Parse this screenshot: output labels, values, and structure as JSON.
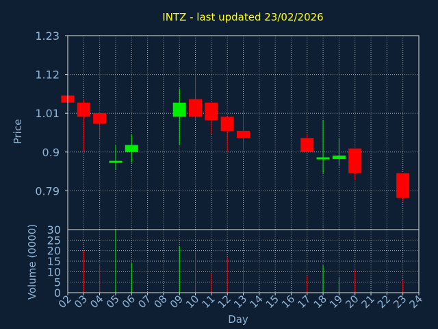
{
  "chart_data": {
    "type": "candlestick",
    "title": "INTZ - last updated 23/02/2026",
    "xlabel": "Day",
    "ylabel": "Price",
    "volume_label": "Volume (0000)",
    "grid": true,
    "price_ylim": [
      0.68,
      1.23
    ],
    "price_ticks": [
      "1.23",
      "1.12",
      "1.01",
      "0.9",
      "0.79"
    ],
    "volume_ylim": [
      0,
      30
    ],
    "volume_ticks": [
      "30",
      "25",
      "20",
      "15",
      "10",
      "5",
      "0"
    ],
    "days": [
      "02",
      "03",
      "04",
      "05",
      "06",
      "07",
      "08",
      "09",
      "10",
      "11",
      "12",
      "13",
      "14",
      "15",
      "16",
      "17",
      "18",
      "19",
      "20",
      "21",
      "22",
      "23",
      "24"
    ],
    "candles": [
      {
        "day": "02",
        "open": 1.06,
        "high": 1.06,
        "low": 1.04,
        "close": 1.04,
        "volume": 0
      },
      {
        "day": "03",
        "open": 1.04,
        "high": 1.05,
        "low": 0.9,
        "close": 1.0,
        "volume": 20
      },
      {
        "day": "04",
        "open": 1.01,
        "high": 1.01,
        "low": 0.94,
        "close": 0.98,
        "volume": 13
      },
      {
        "day": "05",
        "open": 0.87,
        "high": 0.92,
        "low": 0.85,
        "close": 0.875,
        "volume": 30
      },
      {
        "day": "06",
        "open": 0.9,
        "high": 0.95,
        "low": 0.87,
        "close": 0.92,
        "volume": 14
      },
      {
        "day": "09",
        "open": 1.0,
        "high": 1.08,
        "low": 0.92,
        "close": 1.04,
        "volume": 22
      },
      {
        "day": "10",
        "open": 1.05,
        "high": 1.12,
        "low": 0.99,
        "close": 1.0,
        "volume": 20
      },
      {
        "day": "11",
        "open": 1.04,
        "high": 1.04,
        "low": 0.95,
        "close": 0.99,
        "volume": 9
      },
      {
        "day": "12",
        "open": 1.0,
        "high": 1.0,
        "low": 0.9,
        "close": 0.96,
        "volume": 17
      },
      {
        "day": "13",
        "open": 0.96,
        "high": 1.02,
        "low": 0.91,
        "close": 0.94,
        "volume": 12
      },
      {
        "day": "17",
        "open": 0.94,
        "high": 0.95,
        "low": 0.9,
        "close": 0.9,
        "volume": 8
      },
      {
        "day": "18",
        "open": 0.88,
        "high": 0.99,
        "low": 0.84,
        "close": 0.885,
        "volume": 13
      },
      {
        "day": "19",
        "open": 0.88,
        "high": 0.94,
        "low": 0.86,
        "close": 0.89,
        "volume": 7
      },
      {
        "day": "20",
        "open": 0.91,
        "high": 0.91,
        "low": 0.82,
        "close": 0.84,
        "volume": 11
      },
      {
        "day": "23",
        "open": 0.84,
        "high": 0.84,
        "low": 0.76,
        "close": 0.77,
        "volume": 6
      }
    ],
    "colors": {
      "background": "#0f1f33",
      "up": "#00ee00",
      "down": "#ff0000",
      "title": "#ffff00",
      "axis_text": "#8fb4d6",
      "grid": "#d8d8d8"
    }
  }
}
